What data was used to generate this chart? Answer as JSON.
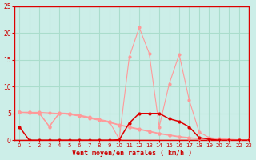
{
  "background_color": "#cceee8",
  "grid_color": "#aaddcc",
  "line1_color": "#ff9999",
  "line2_color": "#dd0000",
  "xlabel": "Vent moyen/en rafales ( km/h )",
  "xlabel_color": "#cc0000",
  "ylabel_color": "#cc0000",
  "ylim": [
    0,
    25
  ],
  "xlim": [
    -0.5,
    23
  ],
  "yticks": [
    0,
    5,
    10,
    15,
    20,
    25
  ],
  "xticks": [
    0,
    1,
    2,
    3,
    4,
    5,
    6,
    7,
    8,
    9,
    10,
    11,
    12,
    13,
    14,
    15,
    16,
    17,
    18,
    19,
    20,
    21,
    22,
    23
  ],
  "line_a_x": [
    0,
    1,
    2,
    3,
    4,
    5,
    6,
    7,
    8,
    9,
    10,
    11,
    12,
    13,
    14,
    15,
    16,
    17,
    18,
    19,
    20,
    21,
    22,
    23
  ],
  "line_a_y": [
    5.2,
    5.2,
    5.2,
    5.1,
    5.0,
    4.8,
    4.5,
    4.1,
    3.7,
    3.3,
    2.8,
    2.4,
    2.0,
    1.6,
    1.2,
    0.9,
    0.6,
    0.4,
    0.3,
    0.2,
    0.2,
    0.1,
    0.1,
    0.1
  ],
  "line_b_x": [
    0,
    1,
    2,
    3,
    4,
    5,
    6,
    7,
    8,
    9,
    10,
    11,
    12,
    13,
    14,
    15,
    16,
    17,
    18,
    19,
    20,
    21,
    22,
    23
  ],
  "line_b_y": [
    5.2,
    5.1,
    5.0,
    2.5,
    5.0,
    4.9,
    4.6,
    4.2,
    3.8,
    3.4,
    2.9,
    2.5,
    2.1,
    1.7,
    1.3,
    1.0,
    0.7,
    0.5,
    0.3,
    0.2,
    0.2,
    0.1,
    0.1,
    0.1
  ],
  "line_c_x": [
    0,
    1,
    2,
    3,
    4,
    5,
    6,
    7,
    8,
    9,
    10,
    11,
    12,
    13,
    14,
    15,
    16,
    17,
    18,
    19,
    20,
    21,
    22,
    23
  ],
  "line_c_y": [
    5.2,
    5.2,
    5.1,
    2.6,
    5.1,
    5.0,
    4.7,
    4.3,
    3.9,
    3.5,
    0.2,
    15.5,
    21.0,
    16.2,
    2.5,
    10.5,
    16.0,
    7.5,
    1.5,
    0.5,
    0.3,
    0.2,
    0.1,
    0.1
  ],
  "line_d_x": [
    0,
    1,
    2,
    3,
    4,
    5,
    6,
    7,
    8,
    9,
    10,
    11,
    12,
    13,
    14,
    15,
    16,
    17,
    18,
    19,
    20,
    21,
    22,
    23
  ],
  "line_d_y": [
    2.5,
    0.0,
    0.0,
    0.0,
    0.0,
    0.0,
    0.0,
    0.0,
    0.0,
    0.0,
    0.1,
    3.2,
    5.0,
    5.0,
    5.0,
    4.0,
    3.5,
    2.5,
    0.5,
    0.2,
    0.0,
    0.0,
    0.0,
    0.0
  ]
}
